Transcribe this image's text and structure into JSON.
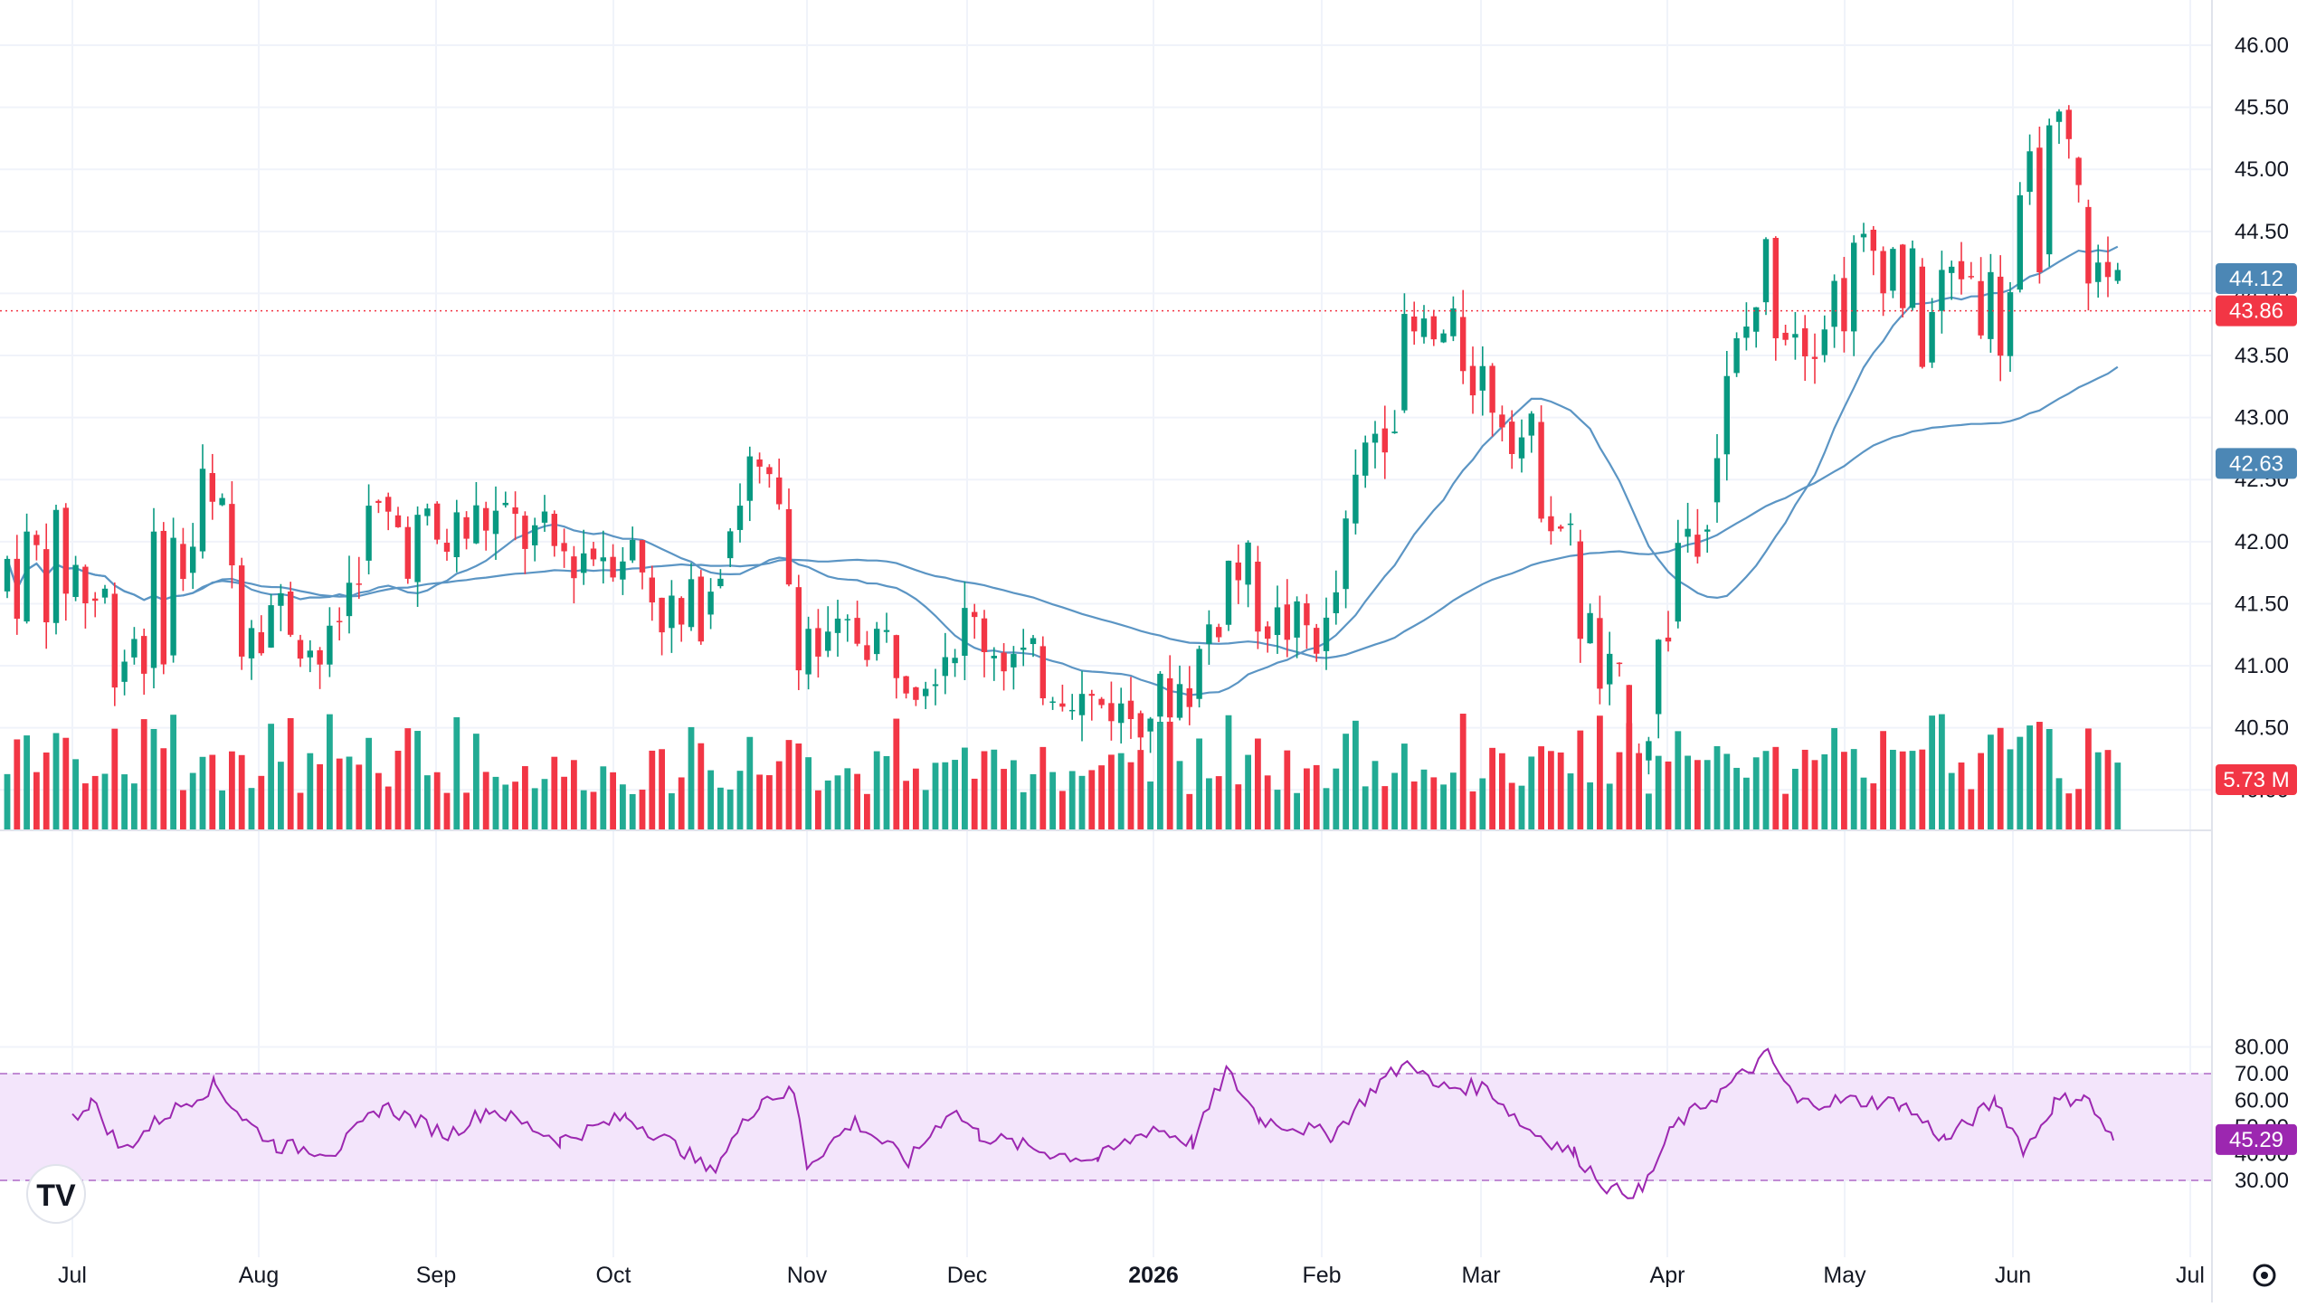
{
  "chart_data": [
    {
      "type": "candlestick",
      "panel": "price",
      "y_ticks": [
        "46.00",
        "45.50",
        "45.00",
        "44.50",
        "44.00",
        "43.50",
        "43.00",
        "42.50",
        "42.00",
        "41.50",
        "41.00",
        "40.50",
        "40.00"
      ],
      "ylim": [
        39.55,
        46.0
      ],
      "x_ticks": [
        "Jul",
        "Aug",
        "Sep",
        "Oct",
        "Nov",
        "Dec",
        "2026",
        "Feb",
        "Mar",
        "Apr",
        "May",
        "Jun",
        "Jul"
      ],
      "grid": true,
      "current_price_line": 43.86,
      "badges": [
        {
          "label": "44.12",
          "color": "#4c87b5"
        },
        {
          "label": "43.86",
          "color": "#f23645"
        },
        {
          "label": "42.63",
          "color": "#4c87b5"
        },
        {
          "label": "5.73 M",
          "color": "#f23645"
        }
      ],
      "moving_averages": [
        {
          "period": "short",
          "color": "#5b95c4",
          "last": 44.12
        },
        {
          "period": "long",
          "color": "#5b95c4",
          "last": 42.63
        }
      ],
      "up_color": "#089981",
      "down_color": "#f23645",
      "ohlc_anchors": [
        [
          "Jul 01",
          41.3,
          42.3
        ],
        [
          "Jul 10",
          40.6,
          41.8
        ],
        [
          "Jul 22",
          41.4,
          42.9
        ],
        [
          "Jul 28",
          41.0,
          42.3
        ],
        [
          "Aug 05",
          41.2,
          41.7
        ],
        [
          "Aug 12",
          40.8,
          41.2
        ],
        [
          "Aug 20",
          41.9,
          42.5
        ],
        [
          "Sep 01",
          41.5,
          42.4
        ],
        [
          "Sep 10",
          41.9,
          42.5
        ],
        [
          "Sep 22",
          41.6,
          42.2
        ],
        [
          "Oct 03",
          41.7,
          42.3
        ],
        [
          "Oct 12",
          40.8,
          41.6
        ],
        [
          "Oct 22",
          42.3,
          42.9
        ],
        [
          "Oct 28",
          41.0,
          42.5
        ],
        [
          "Nov 03",
          40.9,
          41.3
        ],
        [
          "Nov 12",
          41.0,
          41.6
        ],
        [
          "Nov 22",
          40.7,
          41.2
        ],
        [
          "Dec 01",
          41.1,
          41.6
        ],
        [
          "Dec 10",
          40.7,
          41.3
        ],
        [
          "Dec 19",
          40.6,
          40.9
        ],
        [
          "Dec 28",
          40.4,
          40.8
        ],
        [
          "Jan 08",
          40.6,
          41.2
        ],
        [
          "Jan 15",
          41.4,
          42.3
        ],
        [
          "Jan 22",
          41.1,
          41.6
        ],
        [
          "Feb 02",
          41.0,
          41.5
        ],
        [
          "Feb 10",
          42.4,
          43.3
        ],
        [
          "Feb 18",
          43.2,
          44.0
        ],
        [
          "Feb 26",
          43.3,
          43.9
        ],
        [
          "Mar 06",
          42.7,
          43.3
        ],
        [
          "Mar 13",
          41.9,
          42.8
        ],
        [
          "Mar 20",
          40.3,
          41.4
        ],
        [
          "Mar 27",
          40.0,
          40.6
        ],
        [
          "Apr 03",
          41.4,
          42.6
        ],
        [
          "Apr 10",
          42.4,
          43.4
        ],
        [
          "Apr 17",
          43.6,
          44.7
        ],
        [
          "Apr 24",
          43.4,
          44.2
        ],
        [
          "May 01",
          43.6,
          44.5
        ],
        [
          "May 08",
          44.0,
          44.9
        ],
        [
          "May 15",
          43.2,
          44.2
        ],
        [
          "May 22",
          43.9,
          44.6
        ],
        [
          "May 29",
          43.3,
          44.3
        ],
        [
          "Jun 05",
          44.1,
          45.4
        ],
        [
          "Jun 10",
          44.6,
          45.6
        ],
        [
          "Jun 15",
          43.8,
          44.4
        ]
      ]
    },
    {
      "type": "bar",
      "panel": "volume",
      "last_value": "5.73 M",
      "series_colors": {
        "up": "#22ab94",
        "down": "#f23645"
      }
    },
    {
      "type": "line",
      "panel": "rsi",
      "y_ticks": [
        "80.00",
        "70.00",
        "60.00",
        "50.00",
        "40.00",
        "30.00"
      ],
      "ylim": [
        20,
        80
      ],
      "band": [
        30,
        70
      ],
      "line_color": "#9c27b0",
      "band_color": "#f3e5fb",
      "last_value": "45.29",
      "key_points": [
        [
          "Jul 01",
          53
        ],
        [
          "Jul 04",
          60
        ],
        [
          "Jul 09",
          41
        ],
        [
          "Jul 15",
          53
        ],
        [
          "Jul 24",
          66
        ],
        [
          "Jul 29",
          52
        ],
        [
          "Aug 04",
          43
        ],
        [
          "Aug 14",
          41
        ],
        [
          "Aug 22",
          58
        ],
        [
          "Sep 03",
          47
        ],
        [
          "Sep 10",
          57
        ],
        [
          "Sep 22",
          45
        ],
        [
          "Oct 03",
          54
        ],
        [
          "Oct 12",
          41
        ],
        [
          "Oct 16",
          33
        ],
        [
          "Oct 24",
          61
        ],
        [
          "Oct 29",
          63
        ],
        [
          "Nov 01",
          36
        ],
        [
          "Nov 10",
          52
        ],
        [
          "Nov 20",
          37
        ],
        [
          "Nov 28",
          57
        ],
        [
          "Dec 03",
          47
        ],
        [
          "Dec 15",
          40
        ],
        [
          "Dec 22",
          38
        ],
        [
          "Jan 01",
          50
        ],
        [
          "Jan 08",
          44
        ],
        [
          "Jan 14",
          71
        ],
        [
          "Jan 20",
          53
        ],
        [
          "Feb 03",
          47
        ],
        [
          "Feb 12",
          67
        ],
        [
          "Feb 18",
          75
        ],
        [
          "Feb 22",
          65
        ],
        [
          "Mar 02",
          65
        ],
        [
          "Mar 08",
          50
        ],
        [
          "Mar 16",
          40
        ],
        [
          "Mar 22",
          26
        ],
        [
          "Mar 27",
          26
        ],
        [
          "Apr 02",
          50
        ],
        [
          "Apr 10",
          63
        ],
        [
          "Apr 18",
          77
        ],
        [
          "Apr 23",
          59
        ],
        [
          "May 02",
          60
        ],
        [
          "May 11",
          59
        ],
        [
          "May 19",
          45
        ],
        [
          "May 28",
          60
        ],
        [
          "Jun 03",
          41
        ],
        [
          "Jun 08",
          59
        ],
        [
          "Jun 13",
          62
        ],
        [
          "Jun 18",
          45
        ]
      ]
    }
  ]
}
